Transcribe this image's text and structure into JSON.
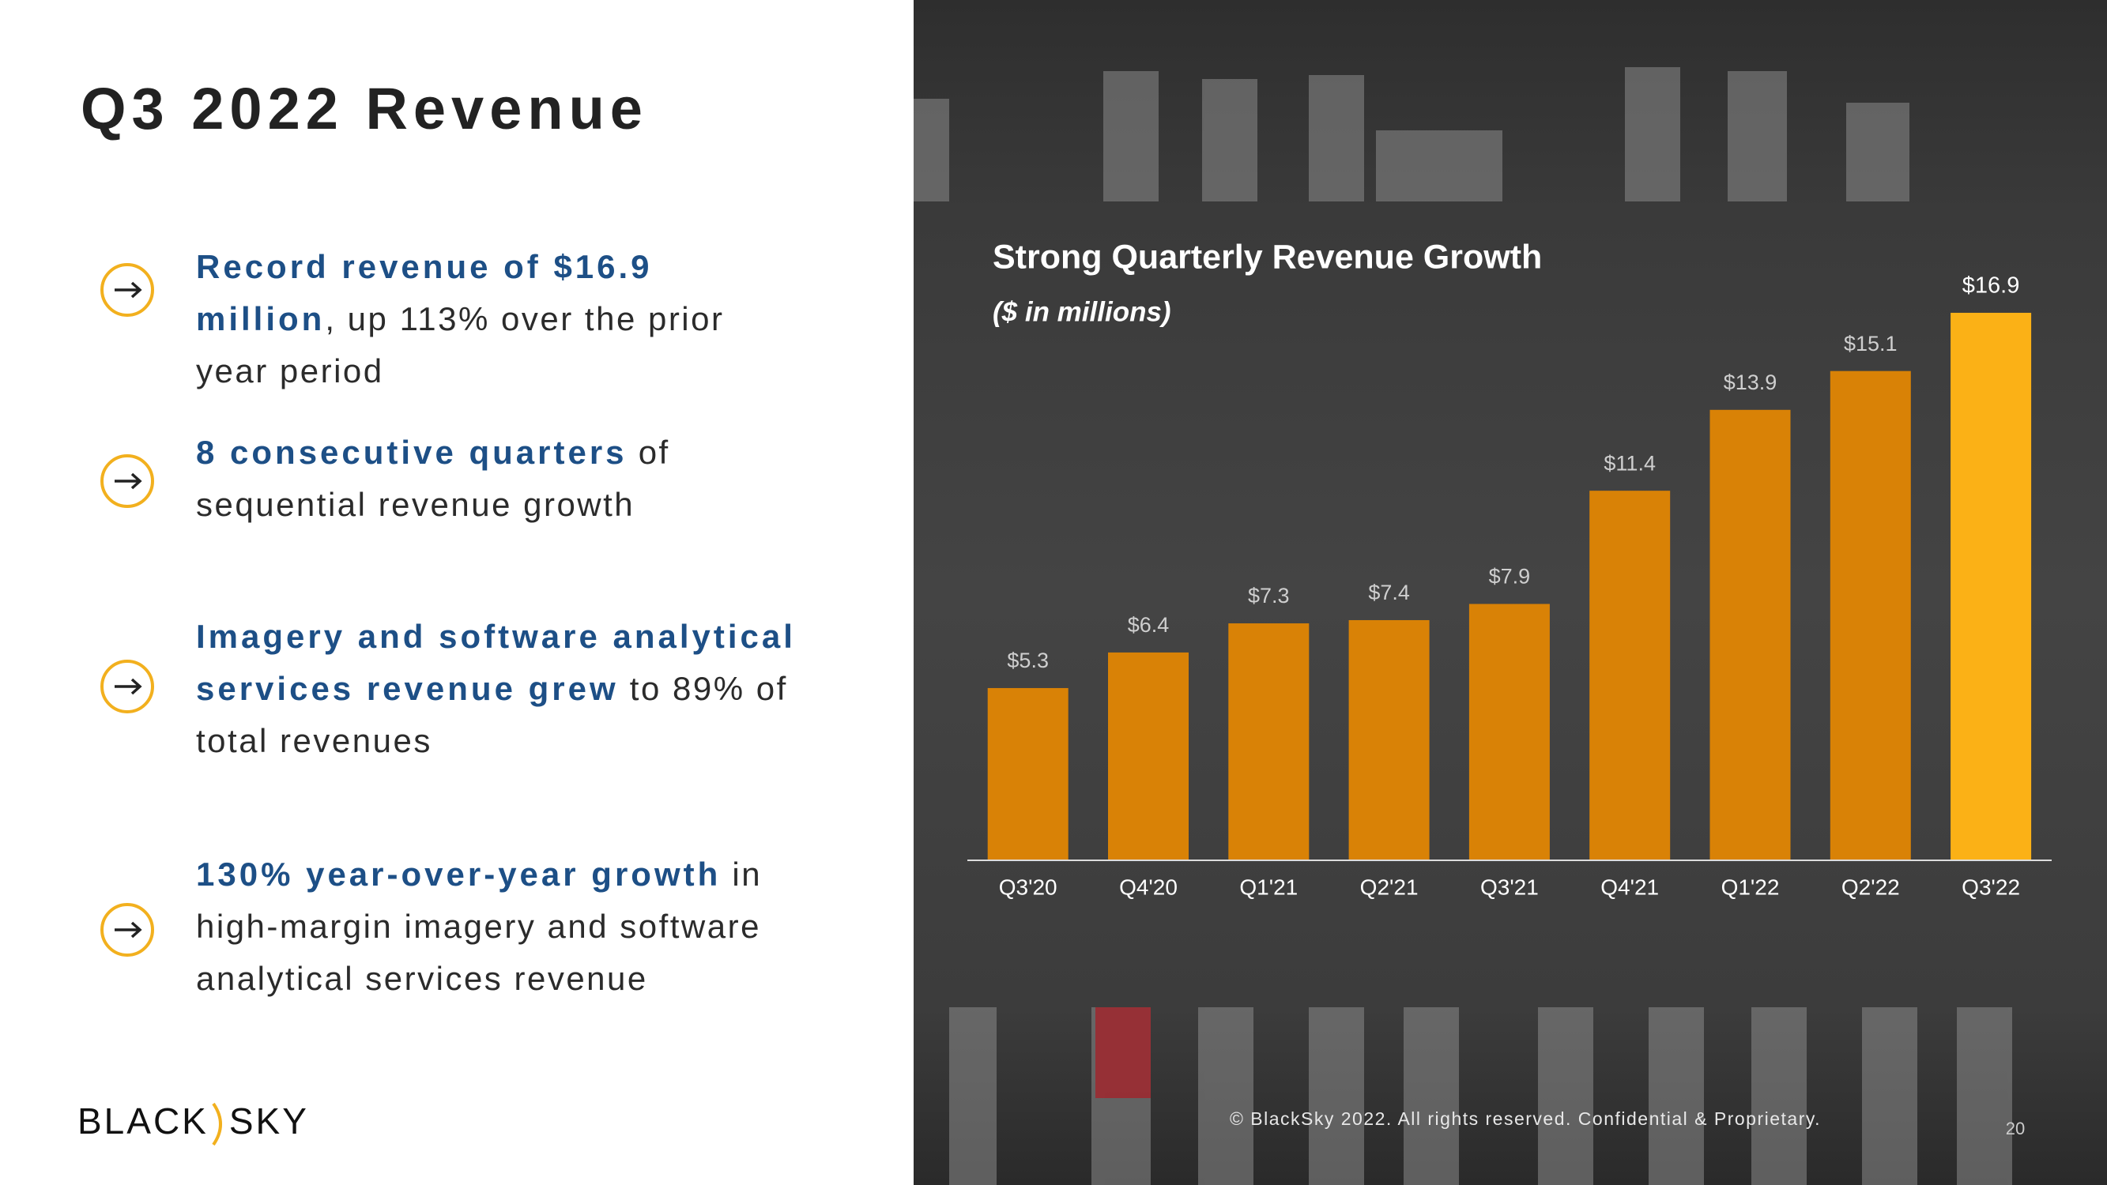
{
  "header": {
    "title": "Q3 2022 Revenue"
  },
  "bullets": [
    {
      "highlight": "Record revenue of $16.9 million",
      "text": ", up 113% over the prior year period"
    },
    {
      "highlight": "8 consecutive quarters",
      "text": " of sequential revenue growth"
    },
    {
      "highlight": "Imagery and software analytical services revenue grew",
      "text": " to 89% of total revenues"
    },
    {
      "highlight": "130% year-over-year growth",
      "text": " in high-margin imagery and software analytical services revenue"
    }
  ],
  "logo": {
    "left": "BLACK",
    "right": "SKY"
  },
  "footer": {
    "copyright": "© BlackSky 2022. All rights reserved. Confidential & Proprietary.",
    "page": "20"
  },
  "chart_data": {
    "type": "bar",
    "title": "Strong Quarterly Revenue Growth",
    "subtitle": "($ in millions)",
    "categories": [
      "Q3'20",
      "Q4'20",
      "Q1'21",
      "Q2'21",
      "Q3'21",
      "Q4'21",
      "Q1'22",
      "Q2'22",
      "Q3'22"
    ],
    "values": [
      5.3,
      6.4,
      7.3,
      7.4,
      7.9,
      11.4,
      13.9,
      15.1,
      16.9
    ],
    "value_labels": [
      "$5.3",
      "$6.4",
      "$7.3",
      "$7.4",
      "$7.9",
      "$11.4",
      "$13.9",
      "$15.1",
      "$16.9"
    ],
    "colors": [
      "#d98206",
      "#d98206",
      "#d98206",
      "#d98206",
      "#d98206",
      "#d98206",
      "#d98206",
      "#d98206",
      "#fbb116"
    ]
  }
}
